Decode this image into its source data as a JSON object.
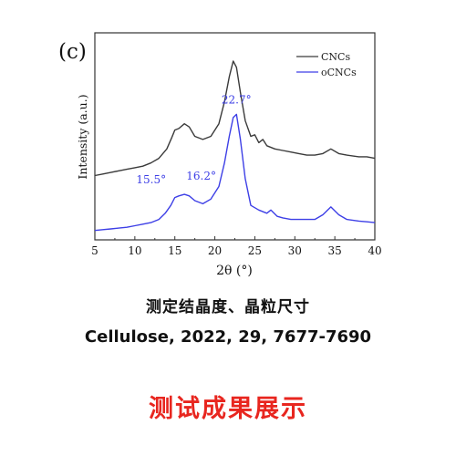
{
  "chart_data": {
    "type": "line",
    "panel_label": "(c)",
    "xlabel": "2θ (°)",
    "ylabel": "Intensity (a.u.)",
    "xlim": [
      5,
      40
    ],
    "x_ticks": [
      "5",
      "10",
      "15",
      "20",
      "25",
      "30",
      "35",
      "40"
    ],
    "legend_position": "top-right",
    "grid": false,
    "series": [
      {
        "name": "CNCs",
        "color": "#3a3a3a",
        "points": [
          [
            5.0,
            0.37
          ],
          [
            6.0,
            0.38
          ],
          [
            7.0,
            0.39
          ],
          [
            8.0,
            0.4
          ],
          [
            9.0,
            0.41
          ],
          [
            10.0,
            0.42
          ],
          [
            11.0,
            0.43
          ],
          [
            12.0,
            0.45
          ],
          [
            13.0,
            0.48
          ],
          [
            14.0,
            0.54
          ],
          [
            14.6,
            0.61
          ],
          [
            15.0,
            0.66
          ],
          [
            15.5,
            0.67
          ],
          [
            16.2,
            0.7
          ],
          [
            16.8,
            0.68
          ],
          [
            17.5,
            0.62
          ],
          [
            18.5,
            0.6
          ],
          [
            19.5,
            0.62
          ],
          [
            20.5,
            0.7
          ],
          [
            21.2,
            0.84
          ],
          [
            21.8,
            1.0
          ],
          [
            22.3,
            1.1
          ],
          [
            22.7,
            1.06
          ],
          [
            23.2,
            0.9
          ],
          [
            23.8,
            0.72
          ],
          [
            24.5,
            0.62
          ],
          [
            25.0,
            0.63
          ],
          [
            25.5,
            0.58
          ],
          [
            26.0,
            0.6
          ],
          [
            26.5,
            0.56
          ],
          [
            27.5,
            0.54
          ],
          [
            28.5,
            0.53
          ],
          [
            29.5,
            0.52
          ],
          [
            30.5,
            0.51
          ],
          [
            31.5,
            0.5
          ],
          [
            32.5,
            0.5
          ],
          [
            33.5,
            0.51
          ],
          [
            34.5,
            0.54
          ],
          [
            35.5,
            0.51
          ],
          [
            36.5,
            0.5
          ],
          [
            38.0,
            0.49
          ],
          [
            39.0,
            0.49
          ],
          [
            40.0,
            0.48
          ]
        ]
      },
      {
        "name": "oCNCs",
        "color": "#3d3fe6",
        "points": [
          [
            5.0,
            0.02
          ],
          [
            6.0,
            0.025
          ],
          [
            7.0,
            0.03
          ],
          [
            8.0,
            0.035
          ],
          [
            9.0,
            0.04
          ],
          [
            10.0,
            0.05
          ],
          [
            11.0,
            0.06
          ],
          [
            12.0,
            0.07
          ],
          [
            13.0,
            0.09
          ],
          [
            13.8,
            0.13
          ],
          [
            14.5,
            0.18
          ],
          [
            15.0,
            0.23
          ],
          [
            15.5,
            0.24
          ],
          [
            16.2,
            0.25
          ],
          [
            16.8,
            0.24
          ],
          [
            17.5,
            0.21
          ],
          [
            18.5,
            0.19
          ],
          [
            19.5,
            0.22
          ],
          [
            20.5,
            0.3
          ],
          [
            21.2,
            0.45
          ],
          [
            21.8,
            0.62
          ],
          [
            22.3,
            0.74
          ],
          [
            22.7,
            0.76
          ],
          [
            23.2,
            0.6
          ],
          [
            23.8,
            0.35
          ],
          [
            24.5,
            0.18
          ],
          [
            25.5,
            0.15
          ],
          [
            26.5,
            0.13
          ],
          [
            27.0,
            0.15
          ],
          [
            27.8,
            0.11
          ],
          [
            28.5,
            0.1
          ],
          [
            29.5,
            0.09
          ],
          [
            30.5,
            0.09
          ],
          [
            31.5,
            0.09
          ],
          [
            32.5,
            0.09
          ],
          [
            33.5,
            0.12
          ],
          [
            34.5,
            0.17
          ],
          [
            35.5,
            0.12
          ],
          [
            36.5,
            0.09
          ],
          [
            38.0,
            0.08
          ],
          [
            39.0,
            0.075
          ],
          [
            40.0,
            0.07
          ]
        ]
      }
    ],
    "annotations": [
      {
        "text": "15.5°",
        "x": 15.5,
        "y": 0.24,
        "color": "#3d3fe6"
      },
      {
        "text": "16.2°",
        "x": 16.2,
        "y": 0.25,
        "color": "#3d3fe6"
      },
      {
        "text": "22.7°",
        "x": 22.7,
        "y": 0.76,
        "color": "#3d3fe6"
      }
    ]
  },
  "captions": {
    "line1": "测定结晶度、晶粒尺寸",
    "line2": "Cellulose, 2022, 29, 7677-7690",
    "line3": "测试成果展示"
  }
}
